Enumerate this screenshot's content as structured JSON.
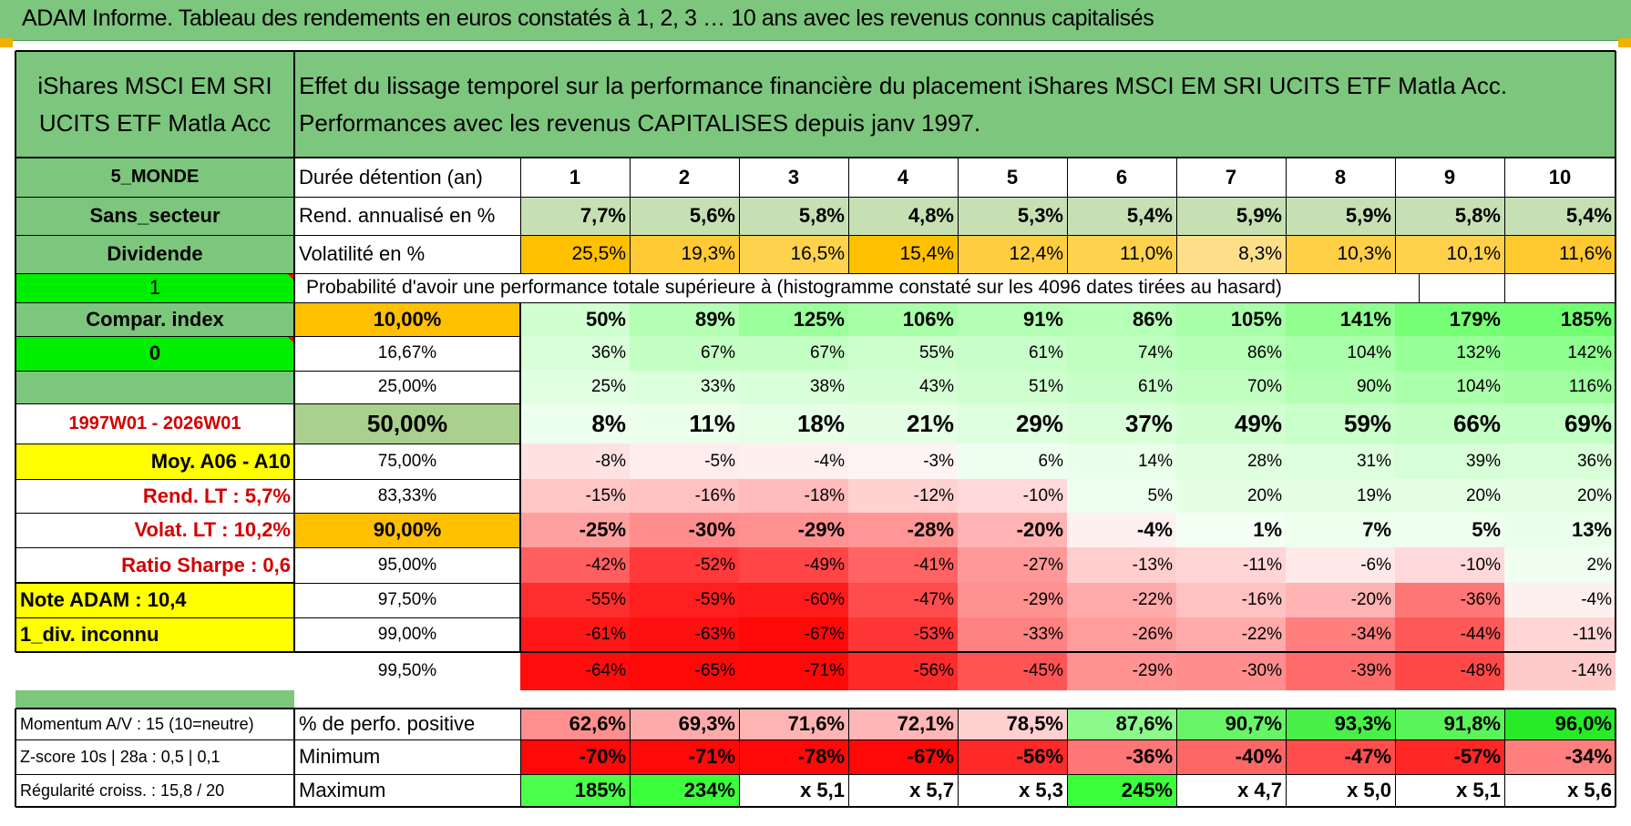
{
  "title": "ADAM Informe. Tableau des rendements en euros constatés à 1, 2, 3 … 10 ans avec les revenus connus capitalisés",
  "left_panel": {
    "fund_name": "iShares MSCI EM SRI UCITS ETF Matla Acc",
    "region": "5_MONDE",
    "sector": "Sans_secteur",
    "income_type": "Dividende",
    "flag_1": "1",
    "compar_index": "Compar. index",
    "flag_0": "0",
    "period": "1997W01 - 2026W01",
    "moy": "Moy. A06 - A10",
    "rend_lt": "Rend. LT :   5,7%",
    "volat_lt": "Volat. LT :   10,2%",
    "sharpe": "Ratio Sharpe :    0,6",
    "note_adam": "Note ADAM : 10,4",
    "div_inconnu": "1_div. inconnu",
    "momentum": "Momentum A/V : 15 (10=neutre)",
    "zscore": "Z-score 10s | 28a : 0,5 | 0,1",
    "regularite": "Régularité croiss. : 15,8 / 20"
  },
  "header_text": "Effet du lissage temporel sur la performance financière du placement iShares MSCI EM SRI UCITS ETF Matla Acc. Performances avec les revenus CAPITALISES depuis janv 1997.",
  "row_labels": {
    "duration": "Durée détention (an)",
    "rend": "Rend. annualisé en %",
    "vol": "Volatilité en %",
    "prob": "Probabilité d'avoir une performance totale supérieure à (histogramme constaté sur les 4096 dates tirées au hasard)",
    "pct_pos": "% de perfo. positive",
    "min": "Minimum",
    "max": "Maximum"
  },
  "years": [
    "1",
    "2",
    "3",
    "4",
    "5",
    "6",
    "7",
    "8",
    "9",
    "10"
  ],
  "rend": [
    "7,7%",
    "5,6%",
    "5,8%",
    "4,8%",
    "5,3%",
    "5,4%",
    "5,9%",
    "5,9%",
    "5,8%",
    "5,4%"
  ],
  "vol": [
    "25,5%",
    "19,3%",
    "16,5%",
    "15,4%",
    "12,4%",
    "11,0%",
    "8,3%",
    "10,3%",
    "10,1%",
    "11,6%"
  ],
  "quantiles": [
    {
      "label": "10,00%",
      "values": [
        "50%",
        "89%",
        "125%",
        "106%",
        "91%",
        "86%",
        "105%",
        "141%",
        "179%",
        "185%"
      ]
    },
    {
      "label": "16,67%",
      "values": [
        "36%",
        "67%",
        "67%",
        "55%",
        "61%",
        "74%",
        "86%",
        "104%",
        "132%",
        "142%"
      ]
    },
    {
      "label": "25,00%",
      "values": [
        "25%",
        "33%",
        "38%",
        "43%",
        "51%",
        "61%",
        "70%",
        "90%",
        "104%",
        "116%"
      ]
    },
    {
      "label": "50,00%",
      "values": [
        "8%",
        "11%",
        "18%",
        "21%",
        "29%",
        "37%",
        "49%",
        "59%",
        "66%",
        "69%"
      ]
    },
    {
      "label": "75,00%",
      "values": [
        "-8%",
        "-5%",
        "-4%",
        "-3%",
        "6%",
        "14%",
        "28%",
        "31%",
        "39%",
        "36%"
      ]
    },
    {
      "label": "83,33%",
      "values": [
        "-15%",
        "-16%",
        "-18%",
        "-12%",
        "-10%",
        "5%",
        "20%",
        "19%",
        "20%",
        "20%"
      ]
    },
    {
      "label": "90,00%",
      "values": [
        "-25%",
        "-30%",
        "-29%",
        "-28%",
        "-20%",
        "-4%",
        "1%",
        "7%",
        "5%",
        "13%"
      ]
    },
    {
      "label": "95,00%",
      "values": [
        "-42%",
        "-52%",
        "-49%",
        "-41%",
        "-27%",
        "-13%",
        "-11%",
        "-6%",
        "-10%",
        "2%"
      ]
    },
    {
      "label": "97,50%",
      "values": [
        "-55%",
        "-59%",
        "-60%",
        "-47%",
        "-29%",
        "-22%",
        "-16%",
        "-20%",
        "-36%",
        "-4%"
      ]
    },
    {
      "label": "99,00%",
      "values": [
        "-61%",
        "-63%",
        "-67%",
        "-53%",
        "-33%",
        "-26%",
        "-22%",
        "-34%",
        "-44%",
        "-11%"
      ]
    },
    {
      "label": "99,50%",
      "values": [
        "-64%",
        "-65%",
        "-71%",
        "-56%",
        "-45%",
        "-29%",
        "-30%",
        "-39%",
        "-48%",
        "-14%"
      ]
    }
  ],
  "pct_pos": [
    "62,6%",
    "69,3%",
    "71,6%",
    "72,1%",
    "78,5%",
    "87,6%",
    "90,7%",
    "93,3%",
    "91,8%",
    "96,0%"
  ],
  "min": [
    "-70%",
    "-71%",
    "-78%",
    "-67%",
    "-56%",
    "-36%",
    "-40%",
    "-47%",
    "-57%",
    "-34%"
  ],
  "max": [
    "185%",
    "234%",
    "x 5,1",
    "x 5,7",
    "x 5,3",
    "245%",
    "x 4,7",
    "x 5,0",
    "x 5,1",
    "x 5,6"
  ],
  "colors": {
    "header_green": "#7dc67d",
    "bright_green": "#00ee00",
    "yellow": "#ffff00",
    "orange": "#ffc000",
    "light_green": "#c6e0b4",
    "red_text": "#d40000"
  }
}
